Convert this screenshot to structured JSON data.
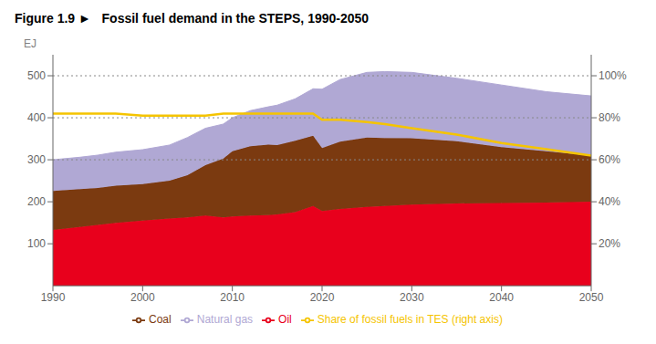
{
  "chart_data": {
    "type": "area",
    "title": "Figure 1.9 ►   Fossil fuel demand in the STEPS, 1990-2050",
    "y_label": "EJ",
    "x": [
      1990,
      1993,
      1995,
      1997,
      2000,
      2003,
      2005,
      2007,
      2009,
      2010,
      2012,
      2014,
      2015,
      2017,
      2019,
      2020,
      2022,
      2025,
      2027,
      2030,
      2035,
      2040,
      2045,
      2050
    ],
    "series": [
      {
        "name": "Oil",
        "color": "#e8001c",
        "values": [
          133,
          140,
          145,
          150,
          155,
          160,
          163,
          167,
          163,
          165,
          167,
          168,
          170,
          175,
          190,
          178,
          183,
          188,
          190,
          193,
          196,
          197,
          198,
          200
        ]
      },
      {
        "name": "Coal",
        "color": "#7b3a10",
        "values": [
          93,
          90,
          88,
          88,
          87,
          90,
          100,
          120,
          140,
          155,
          165,
          168,
          165,
          170,
          167,
          150,
          160,
          165,
          162,
          158,
          148,
          133,
          122,
          110
        ]
      },
      {
        "name": "Natural gas",
        "color": "#b0a8d4",
        "values": [
          74,
          76,
          78,
          80,
          82,
          85,
          90,
          88,
          82,
          80,
          85,
          90,
          95,
          100,
          112,
          140,
          148,
          155,
          158,
          157,
          150,
          148,
          142,
          142
        ]
      },
      {
        "name": "Share of fossil fuels in TES (right axis)",
        "color": "#f5c400",
        "type": "line",
        "axis": "y2",
        "values": [
          82,
          82,
          82,
          82,
          81,
          81,
          81,
          81,
          82,
          82,
          82,
          82,
          82,
          82,
          82,
          79,
          79,
          78,
          77,
          75,
          72,
          68,
          65,
          62
        ]
      }
    ],
    "stacked": true,
    "xlim": [
      1990,
      2050
    ],
    "xticks": [
      1990,
      2000,
      2010,
      2020,
      2030,
      2040,
      2050
    ],
    "ylim": [
      0,
      550
    ],
    "yticks": [
      100,
      200,
      300,
      400,
      500
    ],
    "y2lim": [
      0,
      110
    ],
    "y2ticks": [
      {
        "value": 20,
        "label": "20%"
      },
      {
        "value": 40,
        "label": "40%"
      },
      {
        "value": 60,
        "label": "60%"
      },
      {
        "value": 80,
        "label": "80%"
      },
      {
        "value": 100,
        "label": "100%"
      }
    ],
    "reference_lines": [
      500,
      400,
      300
    ],
    "grid": false,
    "legend": "bottom"
  }
}
